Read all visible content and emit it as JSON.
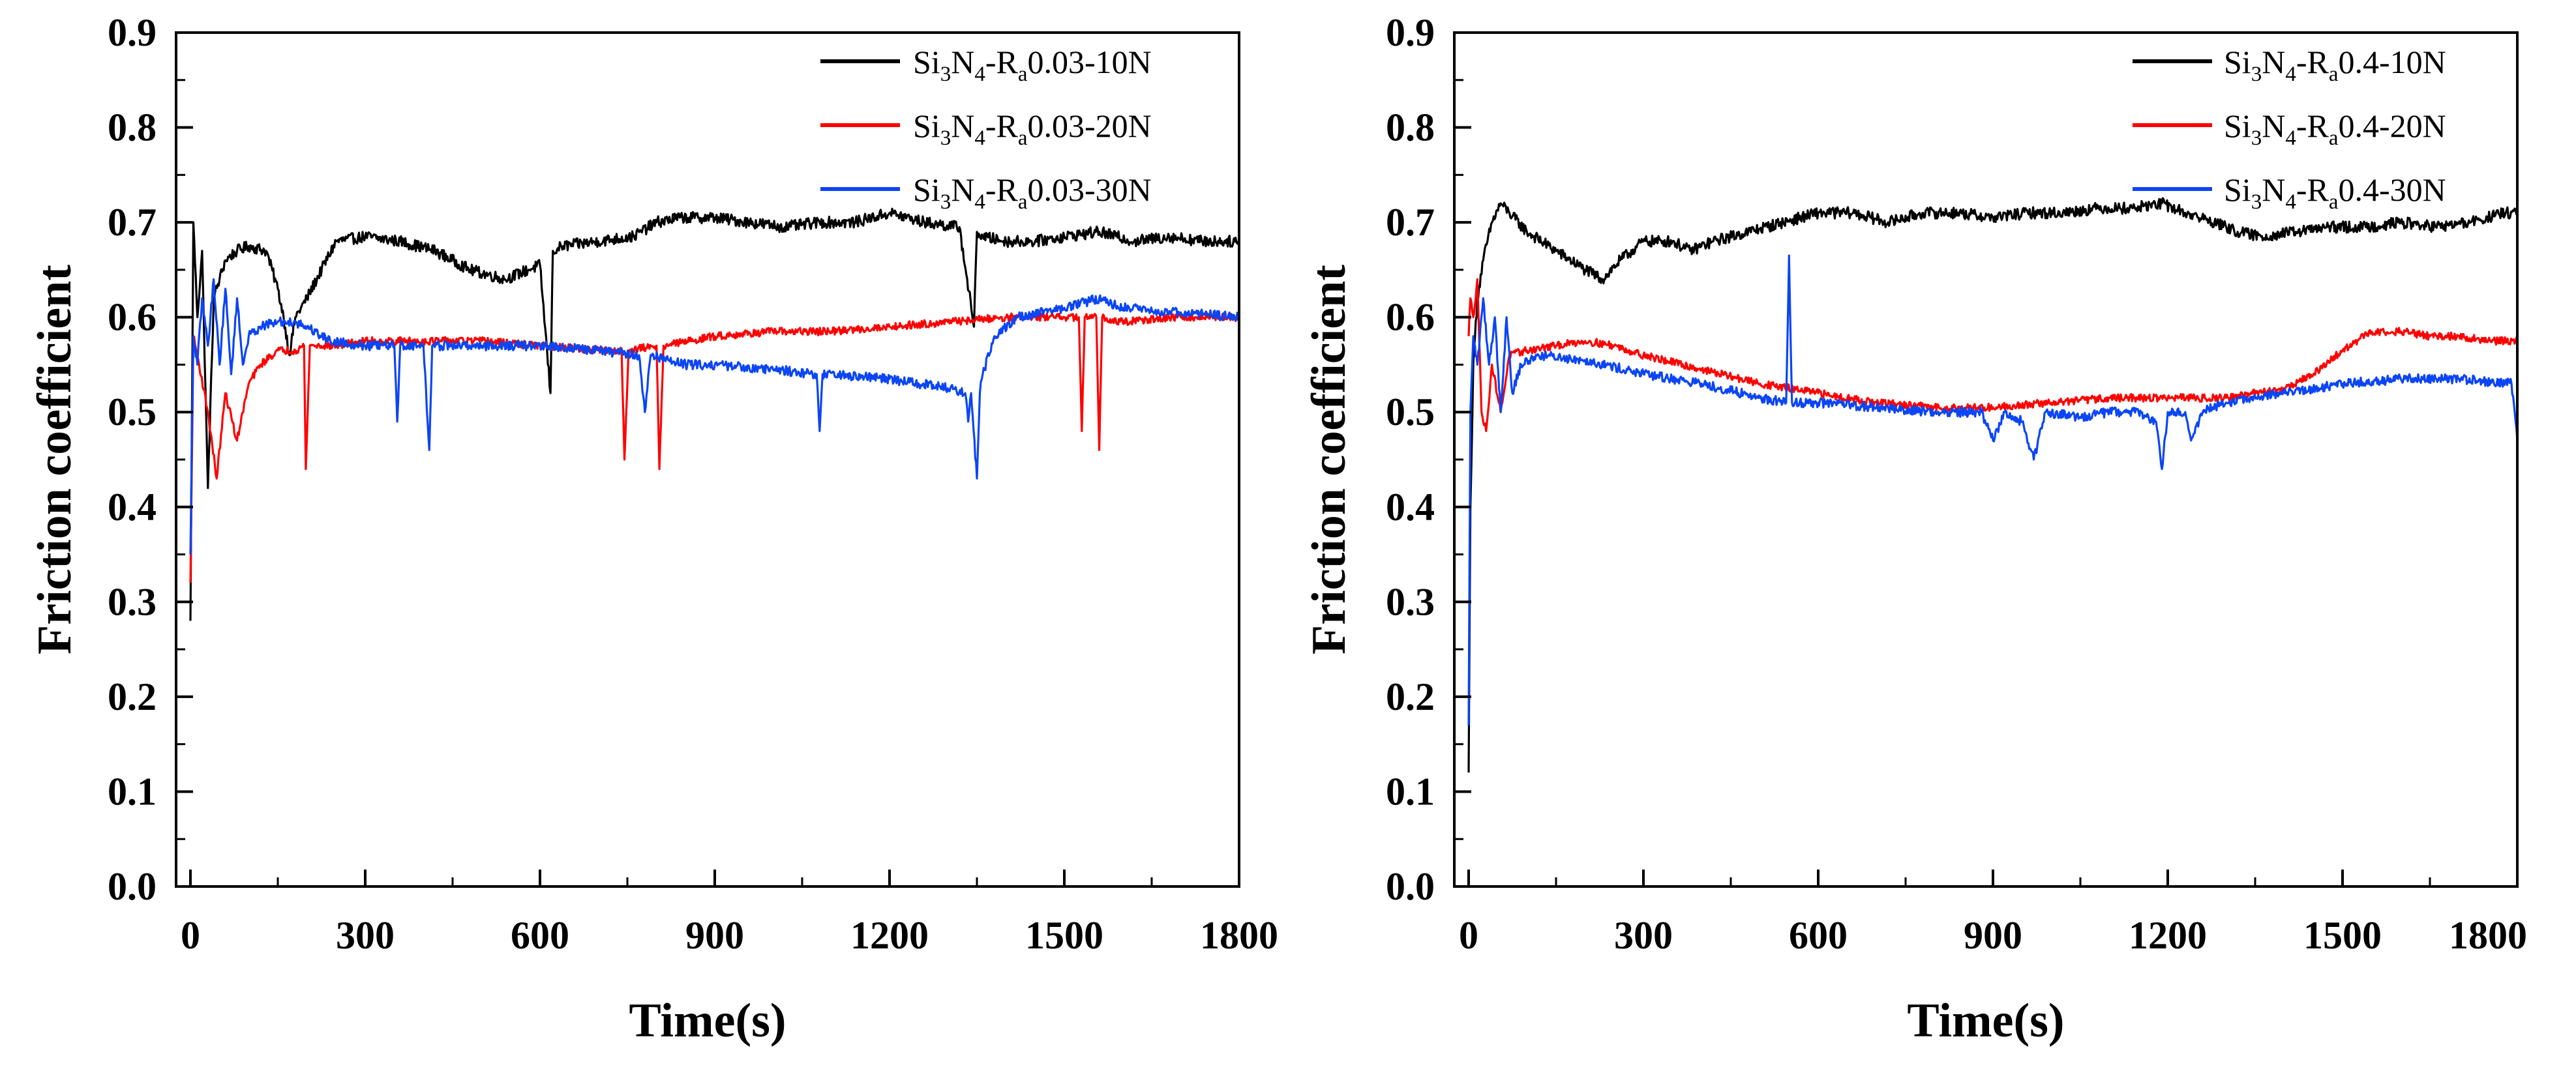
{
  "chart_data": [
    {
      "type": "line",
      "title": "",
      "xlabel": "Time(s)",
      "ylabel": "Friction coefficient",
      "xlim": [
        0,
        1800
      ],
      "ylim": [
        0,
        0.9
      ],
      "xticks": [
        0,
        300,
        600,
        900,
        1200,
        1500,
        1800
      ],
      "yticks": [
        0.0,
        0.1,
        0.2,
        0.3,
        0.4,
        0.5,
        0.6,
        0.7,
        0.8,
        0.9
      ],
      "xtick_labels": [
        "0",
        "300",
        "600",
        "900",
        "1200",
        "1500",
        "1800"
      ],
      "ytick_labels": [
        "0.0",
        "0.1",
        "0.2",
        "0.3",
        "0.4",
        "0.5",
        "0.6",
        "0.7",
        "0.8",
        "0.9"
      ],
      "legend_position": "top-right",
      "series": [
        {
          "name": "Si3N4-Ra0.03-10N",
          "legend": {
            "a": "Si",
            "b": "3",
            "c": "N",
            "d": "4",
            "e": "-R",
            "f": "a",
            "g": "0.03-10N"
          },
          "color": "#000000",
          "x": [
            0,
            5,
            12,
            20,
            30,
            40,
            50,
            60,
            80,
            100,
            130,
            150,
            160,
            170,
            180,
            200,
            250,
            300,
            360,
            420,
            480,
            540,
            600,
            618,
            622,
            640,
            700,
            760,
            800,
            840,
            900,
            960,
            1020,
            1080,
            1140,
            1200,
            1260,
            1320,
            1345,
            1350,
            1360,
            1400,
            1450,
            1500,
            1560,
            1620,
            1680,
            1740,
            1800
          ],
          "y": [
            0.28,
            0.7,
            0.6,
            0.67,
            0.42,
            0.62,
            0.64,
            0.66,
            0.67,
            0.675,
            0.67,
            0.63,
            0.6,
            0.56,
            0.6,
            0.62,
            0.68,
            0.685,
            0.68,
            0.67,
            0.65,
            0.64,
            0.655,
            0.52,
            0.67,
            0.675,
            0.68,
            0.685,
            0.7,
            0.705,
            0.705,
            0.7,
            0.695,
            0.7,
            0.7,
            0.71,
            0.7,
            0.695,
            0.59,
            0.69,
            0.685,
            0.68,
            0.68,
            0.685,
            0.69,
            0.68,
            0.685,
            0.68,
            0.68
          ],
          "noise": 0.006
        },
        {
          "name": "Si3N4-Ra0.03-20N",
          "legend": {
            "a": "Si",
            "b": "3",
            "c": "N",
            "d": "4",
            "e": "-R",
            "f": "a",
            "g": "0.03-20N"
          },
          "color": "#ff0000",
          "x": [
            0,
            5,
            15,
            30,
            45,
            60,
            80,
            100,
            120,
            150,
            180,
            195,
            198,
            205,
            250,
            300,
            400,
            500,
            600,
            700,
            740,
            745,
            752,
            800,
            805,
            812,
            900,
            1000,
            1100,
            1200,
            1300,
            1400,
            1500,
            1525,
            1530,
            1535,
            1555,
            1560,
            1565,
            1600,
            1700,
            1800
          ],
          "y": [
            0.32,
            0.58,
            0.55,
            0.5,
            0.43,
            0.52,
            0.47,
            0.53,
            0.55,
            0.565,
            0.565,
            0.57,
            0.44,
            0.57,
            0.57,
            0.575,
            0.575,
            0.575,
            0.57,
            0.565,
            0.565,
            0.45,
            0.565,
            0.57,
            0.44,
            0.57,
            0.58,
            0.585,
            0.585,
            0.59,
            0.595,
            0.6,
            0.6,
            0.6,
            0.48,
            0.6,
            0.6,
            0.46,
            0.6,
            0.595,
            0.6,
            0.6
          ],
          "noise": 0.004
        },
        {
          "name": "Si3N4-Ra0.03-30N",
          "legend": {
            "a": "Si",
            "b": "3",
            "c": "N",
            "d": "4",
            "e": "-R",
            "f": "a",
            "g": "0.03-30N"
          },
          "color": "#0b45f5",
          "x": [
            0,
            5,
            12,
            20,
            30,
            40,
            50,
            60,
            70,
            80,
            90,
            100,
            120,
            150,
            180,
            200,
            240,
            300,
            350,
            355,
            360,
            400,
            410,
            415,
            500,
            600,
            700,
            770,
            780,
            790,
            850,
            900,
            1000,
            1075,
            1080,
            1085,
            1200,
            1300,
            1330,
            1335,
            1340,
            1350,
            1355,
            1360,
            1380,
            1420,
            1500,
            1560,
            1600,
            1700,
            1800
          ],
          "y": [
            0.35,
            0.58,
            0.55,
            0.62,
            0.57,
            0.64,
            0.55,
            0.63,
            0.54,
            0.62,
            0.55,
            0.58,
            0.59,
            0.595,
            0.595,
            0.59,
            0.575,
            0.57,
            0.57,
            0.49,
            0.57,
            0.57,
            0.46,
            0.57,
            0.57,
            0.57,
            0.565,
            0.56,
            0.5,
            0.56,
            0.55,
            0.55,
            0.545,
            0.54,
            0.48,
            0.54,
            0.535,
            0.525,
            0.52,
            0.49,
            0.52,
            0.43,
            0.52,
            0.54,
            0.58,
            0.6,
            0.61,
            0.62,
            0.61,
            0.605,
            0.6
          ],
          "noise": 0.005
        }
      ]
    },
    {
      "type": "line",
      "title": "",
      "xlabel": "Time(s)",
      "ylabel": "Friction coefficient",
      "xlim": [
        0,
        1800
      ],
      "ylim": [
        0,
        0.9
      ],
      "xticks": [
        0,
        300,
        600,
        900,
        1200,
        1500,
        1800
      ],
      "yticks": [
        0.0,
        0.1,
        0.2,
        0.3,
        0.4,
        0.5,
        0.6,
        0.7,
        0.8,
        0.9
      ],
      "xtick_labels": [
        "0",
        "300",
        "600",
        "900",
        "1200",
        "1500",
        "1800"
      ],
      "ytick_labels": [
        "0.0",
        "0.1",
        "0.2",
        "0.3",
        "0.4",
        "0.5",
        "0.6",
        "0.7",
        "0.8",
        "0.9"
      ],
      "legend_position": "top-right",
      "series": [
        {
          "name": "Si3N4-Ra0.4-10N",
          "legend": {
            "a": "Si",
            "b": "3",
            "c": "N",
            "d": "4",
            "e": "-R",
            "f": "a",
            "g": "0.4-10N"
          },
          "color": "#000000",
          "x": [
            0,
            3,
            8,
            15,
            25,
            40,
            55,
            70,
            100,
            150,
            200,
            230,
            260,
            300,
            350,
            380,
            420,
            480,
            540,
            600,
            660,
            720,
            780,
            840,
            900,
            960,
            1020,
            1080,
            1140,
            1190,
            1230,
            1280,
            1320,
            1360,
            1420,
            1480,
            1540,
            1600,
            1660,
            1720,
            1780,
            1800
          ],
          "y": [
            0.12,
            0.4,
            0.55,
            0.62,
            0.66,
            0.7,
            0.72,
            0.71,
            0.69,
            0.67,
            0.65,
            0.64,
            0.66,
            0.68,
            0.68,
            0.67,
            0.68,
            0.69,
            0.7,
            0.71,
            0.71,
            0.7,
            0.71,
            0.71,
            0.705,
            0.71,
            0.71,
            0.715,
            0.715,
            0.72,
            0.71,
            0.7,
            0.69,
            0.685,
            0.69,
            0.695,
            0.695,
            0.7,
            0.695,
            0.7,
            0.71,
            0.71
          ],
          "noise": 0.006
        },
        {
          "name": "Si3N4-Ra0.4-20N",
          "legend": {
            "a": "Si",
            "b": "3",
            "c": "N",
            "d": "4",
            "e": "-R",
            "f": "a",
            "g": "0.4-20N"
          },
          "color": "#ff0000",
          "x": [
            0,
            3,
            8,
            15,
            22,
            30,
            40,
            55,
            70,
            100,
            150,
            200,
            250,
            300,
            400,
            500,
            600,
            700,
            800,
            900,
            1000,
            1100,
            1200,
            1300,
            1400,
            1450,
            1500,
            1550,
            1600,
            1650,
            1700,
            1750,
            1800
          ],
          "y": [
            0.58,
            0.62,
            0.6,
            0.64,
            0.5,
            0.48,
            0.55,
            0.5,
            0.56,
            0.565,
            0.57,
            0.575,
            0.57,
            0.56,
            0.545,
            0.53,
            0.52,
            0.51,
            0.505,
            0.505,
            0.51,
            0.515,
            0.515,
            0.515,
            0.525,
            0.54,
            0.565,
            0.585,
            0.585,
            0.58,
            0.58,
            0.575,
            0.575
          ],
          "noise": 0.004
        },
        {
          "name": "Si3N4-Ra0.4-30N",
          "legend": {
            "a": "Si",
            "b": "3",
            "c": "N",
            "d": "4",
            "e": "-R",
            "f": "a",
            "g": "0.4-30N"
          },
          "color": "#0b45f5",
          "x": [
            0,
            3,
            8,
            15,
            25,
            35,
            45,
            55,
            65,
            75,
            90,
            120,
            200,
            300,
            400,
            500,
            545,
            550,
            555,
            600,
            700,
            800,
            880,
            900,
            920,
            950,
            970,
            990,
            1050,
            1100,
            1150,
            1180,
            1190,
            1200,
            1230,
            1240,
            1260,
            1300,
            1400,
            1500,
            1600,
            1700,
            1790,
            1800
          ],
          "y": [
            0.17,
            0.5,
            0.58,
            0.55,
            0.62,
            0.55,
            0.6,
            0.5,
            0.6,
            0.52,
            0.55,
            0.56,
            0.555,
            0.54,
            0.53,
            0.515,
            0.51,
            0.665,
            0.51,
            0.51,
            0.505,
            0.5,
            0.5,
            0.47,
            0.5,
            0.49,
            0.45,
            0.5,
            0.495,
            0.5,
            0.5,
            0.49,
            0.44,
            0.5,
            0.5,
            0.47,
            0.5,
            0.51,
            0.52,
            0.53,
            0.535,
            0.535,
            0.53,
            0.47
          ],
          "noise": 0.005
        }
      ]
    }
  ]
}
